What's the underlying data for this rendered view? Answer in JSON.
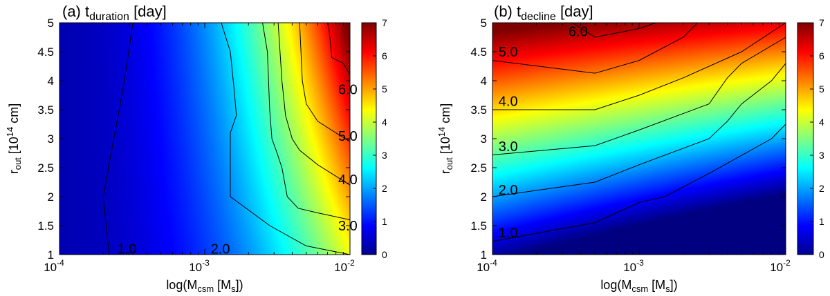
{
  "chart_data": [
    {
      "type": "heatmap",
      "title_prefix": "(a) t",
      "title_sub": "duration",
      "title_suffix": " [day]",
      "xlabel_prefix": "log(M",
      "xlabel_sub": "csm",
      "xlabel_suffix": " [M",
      "xlabel_sub2": "s",
      "xlabel_end": "])",
      "ylabel_prefix": "r",
      "ylabel_sub": "out",
      "ylabel_mid": " [10",
      "ylabel_sup": "14",
      "ylabel_suffix": " cm]",
      "xscale": "log",
      "xlim": [
        0.0001,
        0.01
      ],
      "ylim": [
        1,
        5
      ],
      "x_ticks": [
        {
          "base": "10",
          "exp": "-4",
          "value": 0.0001
        },
        {
          "base": "10",
          "exp": "-3",
          "value": 0.001
        },
        {
          "base": "10",
          "exp": "-2",
          "value": 0.01
        }
      ],
      "y_ticks": [
        "1",
        "1.5",
        "2",
        "2.5",
        "3",
        "3.5",
        "4",
        "4.5",
        "5"
      ],
      "colorbar": {
        "min": 0,
        "max": 7,
        "ticks": [
          "0",
          "1",
          "2",
          "3",
          "4",
          "5",
          "6",
          "7"
        ]
      },
      "contours": [
        {
          "level": 1.0,
          "label": "1.0",
          "label_at": [
            0.00025,
            1.1
          ],
          "points": [
            [
              0.00032,
              5
            ],
            [
              0.00028,
              4
            ],
            [
              0.0002,
              2
            ],
            [
              0.00022,
              1
            ]
          ]
        },
        {
          "level": 2.0,
          "label": "2.0",
          "label_at": [
            0.0011,
            1.1
          ],
          "points": [
            [
              0.0013,
              5
            ],
            [
              0.0015,
              4.5
            ],
            [
              0.0016,
              3.8
            ],
            [
              0.00165,
              3.4
            ],
            [
              0.0015,
              3.1
            ],
            [
              0.0015,
              2
            ],
            [
              0.0028,
              1.5
            ],
            [
              0.005,
              1.15
            ],
            [
              0.01,
              1.0
            ]
          ]
        },
        {
          "level": 3.0,
          "label": "3.0",
          "label_at": [
            0.0083,
            1.5
          ],
          "points": [
            [
              0.0025,
              5
            ],
            [
              0.0027,
              4.5
            ],
            [
              0.0028,
              3.5
            ],
            [
              0.0029,
              3.0
            ],
            [
              0.0031,
              2.8
            ],
            [
              0.0034,
              2.5
            ],
            [
              0.0037,
              2.0
            ],
            [
              0.0044,
              1.8
            ],
            [
              0.006,
              1.72
            ],
            [
              0.01,
              1.6
            ]
          ]
        },
        {
          "level": 4.0,
          "label": "4.0",
          "label_at": [
            0.0083,
            2.3
          ],
          "points": [
            [
              0.0032,
              5
            ],
            [
              0.0034,
              4.0
            ],
            [
              0.0036,
              3.4
            ],
            [
              0.004,
              3.0
            ],
            [
              0.0045,
              2.8
            ],
            [
              0.006,
              2.55
            ],
            [
              0.01,
              2.2
            ]
          ]
        },
        {
          "level": 5.0,
          "label": "5.0",
          "label_at": [
            0.0083,
            3.05
          ],
          "points": [
            [
              0.0045,
              5
            ],
            [
              0.0047,
              4.0
            ],
            [
              0.005,
              3.6
            ],
            [
              0.006,
              3.3
            ],
            [
              0.008,
              3.1
            ],
            [
              0.01,
              2.95
            ]
          ]
        },
        {
          "level": 6.0,
          "label": "6.0",
          "label_at": [
            0.0083,
            3.85
          ],
          "points": [
            [
              0.0071,
              5
            ],
            [
              0.0075,
              4.4
            ],
            [
              0.009,
              4.3
            ],
            [
              0.01,
              4.1
            ]
          ]
        }
      ],
      "color_field": "duration"
    },
    {
      "type": "heatmap",
      "title_prefix": "(b) t",
      "title_sub": "decline",
      "title_suffix": " [day]",
      "xlabel_prefix": "log(M",
      "xlabel_sub": "csm",
      "xlabel_suffix": " [M",
      "xlabel_sub2": "s",
      "xlabel_end": "])",
      "ylabel_prefix": "r",
      "ylabel_sub": "out",
      "ylabel_mid": " [10",
      "ylabel_sup": "14",
      "ylabel_suffix": " cm]",
      "xscale": "log",
      "xlim": [
        0.0001,
        0.01
      ],
      "ylim": [
        1,
        5
      ],
      "x_ticks": [
        {
          "base": "10",
          "exp": "-4",
          "value": 0.0001
        },
        {
          "base": "10",
          "exp": "-3",
          "value": 0.001
        },
        {
          "base": "10",
          "exp": "-2",
          "value": 0.01
        }
      ],
      "y_ticks": [
        "1",
        "1.5",
        "2",
        "2.5",
        "3",
        "3.5",
        "4",
        "4.5",
        "5"
      ],
      "colorbar": {
        "min": 0,
        "max": 7,
        "ticks": [
          "0",
          "1",
          "2",
          "3",
          "4",
          "5",
          "6",
          "7"
        ]
      },
      "contours": [
        {
          "level": 1.0,
          "label": "1.0",
          "label_at": [
            0.00011,
            1.38
          ],
          "points": [
            [
              0.0001,
              1.23
            ],
            [
              0.0005,
              1.55
            ],
            [
              0.001,
              1.9
            ],
            [
              0.0015,
              2.0
            ],
            [
              0.003,
              2.4
            ],
            [
              0.008,
              3.0
            ],
            [
              0.01,
              3.25
            ]
          ]
        },
        {
          "level": 2.0,
          "label": "2.0",
          "label_at": [
            0.00011,
            2.12
          ],
          "points": [
            [
              0.0001,
              2.0
            ],
            [
              0.0005,
              2.25
            ],
            [
              0.001,
              2.55
            ],
            [
              0.003,
              3.0
            ],
            [
              0.004,
              3.3
            ],
            [
              0.005,
              3.6
            ],
            [
              0.008,
              4.0
            ],
            [
              0.01,
              4.3
            ]
          ]
        },
        {
          "level": 3.0,
          "label": "3.0",
          "label_at": [
            0.00011,
            2.87
          ],
          "points": [
            [
              0.0001,
              2.72
            ],
            [
              0.0005,
              2.88
            ],
            [
              0.001,
              3.15
            ],
            [
              0.003,
              3.6
            ],
            [
              0.004,
              4.05
            ],
            [
              0.005,
              4.3
            ],
            [
              0.01,
              4.75
            ]
          ]
        },
        {
          "level": 4.0,
          "label": "4.0",
          "label_at": [
            0.00011,
            3.65
          ],
          "points": [
            [
              0.0001,
              3.5
            ],
            [
              0.0005,
              3.5
            ],
            [
              0.001,
              3.75
            ],
            [
              0.002,
              4.05
            ],
            [
              0.005,
              4.5
            ],
            [
              0.01,
              5.0
            ]
          ]
        },
        {
          "level": 5.0,
          "label": "5.0",
          "label_at": [
            0.00011,
            4.5
          ],
          "points": [
            [
              0.0001,
              4.35
            ],
            [
              0.0005,
              4.13
            ],
            [
              0.001,
              4.35
            ],
            [
              0.002,
              4.75
            ],
            [
              0.0025,
              5.0
            ]
          ]
        },
        {
          "level": 6.0,
          "label": "6.0",
          "label_at": [
            0.00033,
            4.85
          ],
          "points": [
            [
              0.00035,
              5.0
            ],
            [
              0.0005,
              4.75
            ],
            [
              0.001,
              4.9
            ],
            [
              0.0013,
              5.0
            ]
          ]
        }
      ],
      "color_field": "decline"
    }
  ]
}
